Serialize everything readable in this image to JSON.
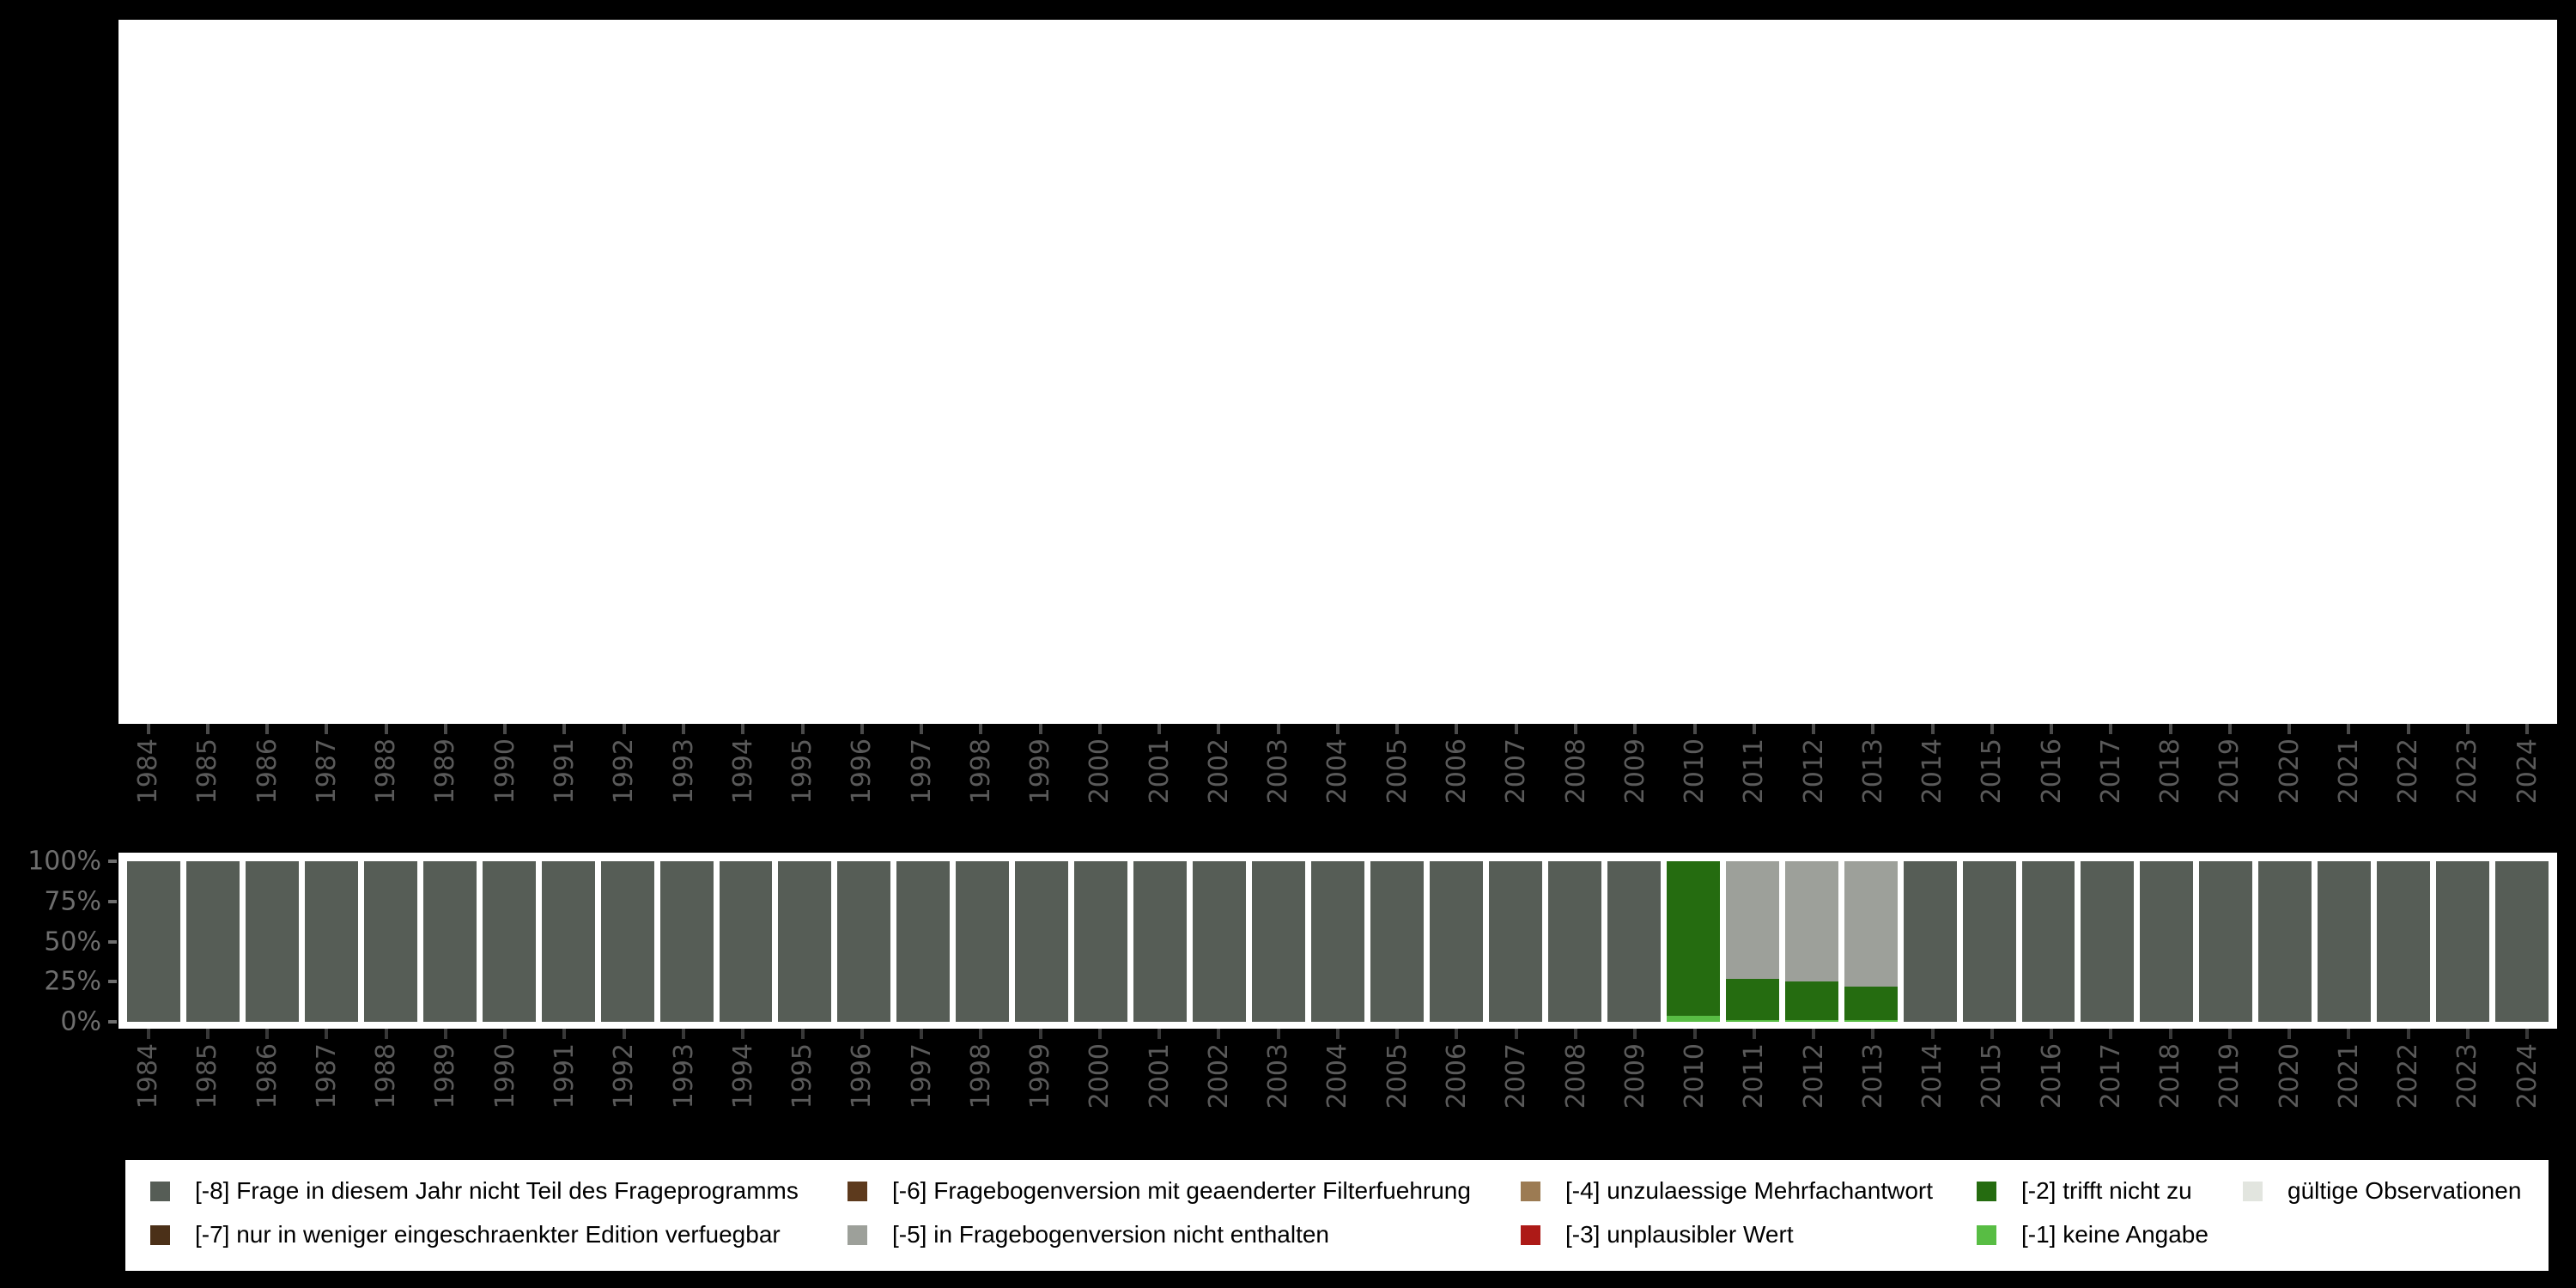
{
  "chart_data": {
    "type": "bar",
    "stacked": true,
    "orientation": "vertical",
    "unit": "percent",
    "ylim": [
      0,
      100
    ],
    "grid": false,
    "y_ticks": [
      "100%",
      "75%",
      "50%",
      "25%",
      "0%"
    ],
    "categories": [
      "1984",
      "1985",
      "1986",
      "1987",
      "1988",
      "1989",
      "1990",
      "1991",
      "1992",
      "1993",
      "1994",
      "1995",
      "1996",
      "1997",
      "1998",
      "1999",
      "2000",
      "2001",
      "2002",
      "2003",
      "2004",
      "2005",
      "2006",
      "2007",
      "2008",
      "2009",
      "2010",
      "2011",
      "2012",
      "2013",
      "2014",
      "2015",
      "2016",
      "2017",
      "2018",
      "2019",
      "2020",
      "2021",
      "2022",
      "2023",
      "2024"
    ],
    "bars": [
      {
        "year": "1984",
        "segments": [
          {
            "code": "-8",
            "value": 100
          }
        ]
      },
      {
        "year": "1985",
        "segments": [
          {
            "code": "-8",
            "value": 100
          }
        ]
      },
      {
        "year": "1986",
        "segments": [
          {
            "code": "-8",
            "value": 100
          }
        ]
      },
      {
        "year": "1987",
        "segments": [
          {
            "code": "-8",
            "value": 100
          }
        ]
      },
      {
        "year": "1988",
        "segments": [
          {
            "code": "-8",
            "value": 100
          }
        ]
      },
      {
        "year": "1989",
        "segments": [
          {
            "code": "-8",
            "value": 100
          }
        ]
      },
      {
        "year": "1990",
        "segments": [
          {
            "code": "-8",
            "value": 100
          }
        ]
      },
      {
        "year": "1991",
        "segments": [
          {
            "code": "-8",
            "value": 100
          }
        ]
      },
      {
        "year": "1992",
        "segments": [
          {
            "code": "-8",
            "value": 100
          }
        ]
      },
      {
        "year": "1993",
        "segments": [
          {
            "code": "-8",
            "value": 100
          }
        ]
      },
      {
        "year": "1994",
        "segments": [
          {
            "code": "-8",
            "value": 100
          }
        ]
      },
      {
        "year": "1995",
        "segments": [
          {
            "code": "-8",
            "value": 100
          }
        ]
      },
      {
        "year": "1996",
        "segments": [
          {
            "code": "-8",
            "value": 100
          }
        ]
      },
      {
        "year": "1997",
        "segments": [
          {
            "code": "-8",
            "value": 100
          }
        ]
      },
      {
        "year": "1998",
        "segments": [
          {
            "code": "-8",
            "value": 100
          }
        ]
      },
      {
        "year": "1999",
        "segments": [
          {
            "code": "-8",
            "value": 100
          }
        ]
      },
      {
        "year": "2000",
        "segments": [
          {
            "code": "-8",
            "value": 100
          }
        ]
      },
      {
        "year": "2001",
        "segments": [
          {
            "code": "-8",
            "value": 100
          }
        ]
      },
      {
        "year": "2002",
        "segments": [
          {
            "code": "-8",
            "value": 100
          }
        ]
      },
      {
        "year": "2003",
        "segments": [
          {
            "code": "-8",
            "value": 100
          }
        ]
      },
      {
        "year": "2004",
        "segments": [
          {
            "code": "-8",
            "value": 100
          }
        ]
      },
      {
        "year": "2005",
        "segments": [
          {
            "code": "-8",
            "value": 100
          }
        ]
      },
      {
        "year": "2006",
        "segments": [
          {
            "code": "-8",
            "value": 100
          }
        ]
      },
      {
        "year": "2007",
        "segments": [
          {
            "code": "-8",
            "value": 100
          }
        ]
      },
      {
        "year": "2008",
        "segments": [
          {
            "code": "-8",
            "value": 100
          }
        ]
      },
      {
        "year": "2009",
        "segments": [
          {
            "code": "-8",
            "value": 100
          }
        ]
      },
      {
        "year": "2010",
        "segments": [
          {
            "code": "-2",
            "value": 96.5
          },
          {
            "code": "-1",
            "value": 3.5
          }
        ]
      },
      {
        "year": "2011",
        "segments": [
          {
            "code": "-5",
            "value": 73
          },
          {
            "code": "-2",
            "value": 26
          },
          {
            "code": "-1",
            "value": 1
          }
        ]
      },
      {
        "year": "2012",
        "segments": [
          {
            "code": "-5",
            "value": 75
          },
          {
            "code": "-2",
            "value": 24
          },
          {
            "code": "-1",
            "value": 1
          }
        ]
      },
      {
        "year": "2013",
        "segments": [
          {
            "code": "-5",
            "value": 78
          },
          {
            "code": "-2",
            "value": 21
          },
          {
            "code": "-1",
            "value": 1
          }
        ]
      },
      {
        "year": "2014",
        "segments": [
          {
            "code": "-8",
            "value": 100
          }
        ]
      },
      {
        "year": "2015",
        "segments": [
          {
            "code": "-8",
            "value": 100
          }
        ]
      },
      {
        "year": "2016",
        "segments": [
          {
            "code": "-8",
            "value": 100
          }
        ]
      },
      {
        "year": "2017",
        "segments": [
          {
            "code": "-8",
            "value": 100
          }
        ]
      },
      {
        "year": "2018",
        "segments": [
          {
            "code": "-8",
            "value": 100
          }
        ]
      },
      {
        "year": "2019",
        "segments": [
          {
            "code": "-8",
            "value": 100
          }
        ]
      },
      {
        "year": "2020",
        "segments": [
          {
            "code": "-8",
            "value": 100
          }
        ]
      },
      {
        "year": "2021",
        "segments": [
          {
            "code": "-8",
            "value": 100
          }
        ]
      },
      {
        "year": "2022",
        "segments": [
          {
            "code": "-8",
            "value": 100
          }
        ]
      },
      {
        "year": "2023",
        "segments": [
          {
            "code": "-8",
            "value": 100
          }
        ]
      },
      {
        "year": "2024",
        "segments": [
          {
            "code": "-8",
            "value": 100
          }
        ]
      }
    ],
    "colors": {
      "-8": "#565D56",
      "-7": "#4B3018",
      "-6": "#5D3A1D",
      "-5": "#9DA09A",
      "-4": "#9C7B53",
      "-3": "#AD1A17",
      "-2": "#256C10",
      "-1": "#58BD44",
      "valid": "#E2E5DF"
    },
    "legend_position": "bottom",
    "legend_columns": [
      [
        {
          "code": "-8",
          "label": "[-8] Frage in diesem Jahr nicht Teil des Frageprogramms"
        },
        {
          "code": "-7",
          "label": "[-7] nur in weniger eingeschraenkter Edition verfuegbar"
        }
      ],
      [
        {
          "code": "-6",
          "label": "[-6] Fragebogenversion mit geaenderter Filterfuehrung"
        },
        {
          "code": "-5",
          "label": "[-5] in Fragebogenversion nicht enthalten"
        }
      ],
      [
        {
          "code": "-4",
          "label": "[-4] unzulaessige Mehrfachantwort"
        },
        {
          "code": "-3",
          "label": "[-3] unplausibler Wert"
        }
      ],
      [
        {
          "code": "-2",
          "label": "[-2] trifft nicht zu"
        },
        {
          "code": "-1",
          "label": "[-1] keine Angabe"
        }
      ],
      [
        {
          "code": "valid",
          "label": "gültige Observationen"
        }
      ]
    ]
  }
}
